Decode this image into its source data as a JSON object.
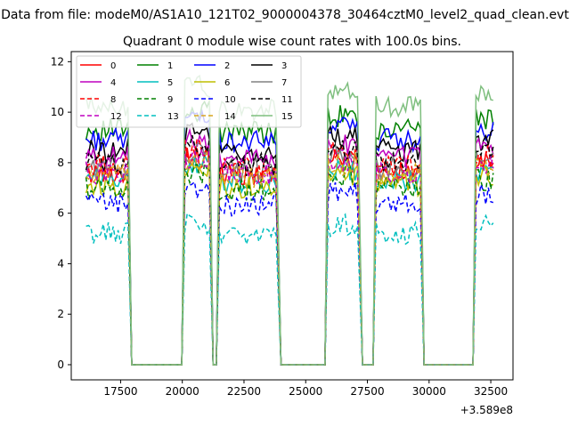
{
  "figure": {
    "suptitle": "Data from file: modeM0/AS1A10_121T02_9000004378_30464cztM0_level2_quad_clean.evt",
    "offset_text": "+3.589e8"
  },
  "chart_data": {
    "type": "line",
    "title": "Quadrant 0 module wise count rates with 100.0s bins.",
    "xlabel": "",
    "ylabel": "",
    "xlim": [
      15500,
      33400
    ],
    "ylim": [
      -0.6,
      12.4
    ],
    "x_offset": 358900000,
    "xticks": [
      17500,
      20000,
      22500,
      25000,
      27500,
      30000,
      32500
    ],
    "yticks": [
      0,
      2,
      4,
      6,
      8,
      10,
      12
    ],
    "grid": false,
    "legend": {
      "location": "upper-left",
      "columns": 4
    },
    "segments": [
      {
        "x_start": 16100,
        "x_end": 17800,
        "level_scale": 1.0
      },
      {
        "x_start": 20100,
        "x_end": 21100,
        "level_scale": 1.08
      },
      {
        "x_start": 21500,
        "x_end": 23850,
        "level_scale": 0.99
      },
      {
        "x_start": 25900,
        "x_end": 27150,
        "level_scale": 1.06
      },
      {
        "x_start": 27850,
        "x_end": 29650,
        "level_scale": 1.0
      },
      {
        "x_start": 31900,
        "x_end": 32600,
        "level_scale": 1.05
      }
    ],
    "gaps": [
      {
        "x_start": 18000,
        "x_end": 20000
      },
      {
        "x_start": 21250,
        "x_end": 21450
      },
      {
        "x_start": 24000,
        "x_end": 25800
      },
      {
        "x_start": 27250,
        "x_end": 27750
      },
      {
        "x_start": 29800,
        "x_end": 31750
      }
    ],
    "series": [
      {
        "name": "0",
        "color": "#ff0000",
        "style": "solid",
        "level": 7.6
      },
      {
        "name": "1",
        "color": "#008000",
        "style": "solid",
        "level": 9.3
      },
      {
        "name": "2",
        "color": "#0000ff",
        "style": "solid",
        "level": 8.9
      },
      {
        "name": "3",
        "color": "#000000",
        "style": "solid",
        "level": 8.5
      },
      {
        "name": "4",
        "color": "#bf00bf",
        "style": "solid",
        "level": 8.2
      },
      {
        "name": "5",
        "color": "#00bfbf",
        "style": "solid",
        "level": 7.3
      },
      {
        "name": "6",
        "color": "#bfbf00",
        "style": "solid",
        "level": 7.1
      },
      {
        "name": "7",
        "color": "#808080",
        "style": "solid",
        "level": 7.8
      },
      {
        "name": "8",
        "color": "#ff0000",
        "style": "dashed",
        "level": 7.9
      },
      {
        "name": "9",
        "color": "#008000",
        "style": "dashed",
        "level": 7.0
      },
      {
        "name": "10",
        "color": "#0000ff",
        "style": "dashed",
        "level": 6.4
      },
      {
        "name": "11",
        "color": "#000000",
        "style": "dashed",
        "level": 8.0
      },
      {
        "name": "12",
        "color": "#bf00bf",
        "style": "dashed",
        "level": 7.6
      },
      {
        "name": "13",
        "color": "#00bfbf",
        "style": "dashed",
        "level": 5.2
      },
      {
        "name": "14",
        "color": "#daa520",
        "style": "dashed",
        "level": 7.5
      },
      {
        "name": "15",
        "color": "#7fbf7f",
        "style": "solid",
        "level": 10.2
      }
    ]
  }
}
